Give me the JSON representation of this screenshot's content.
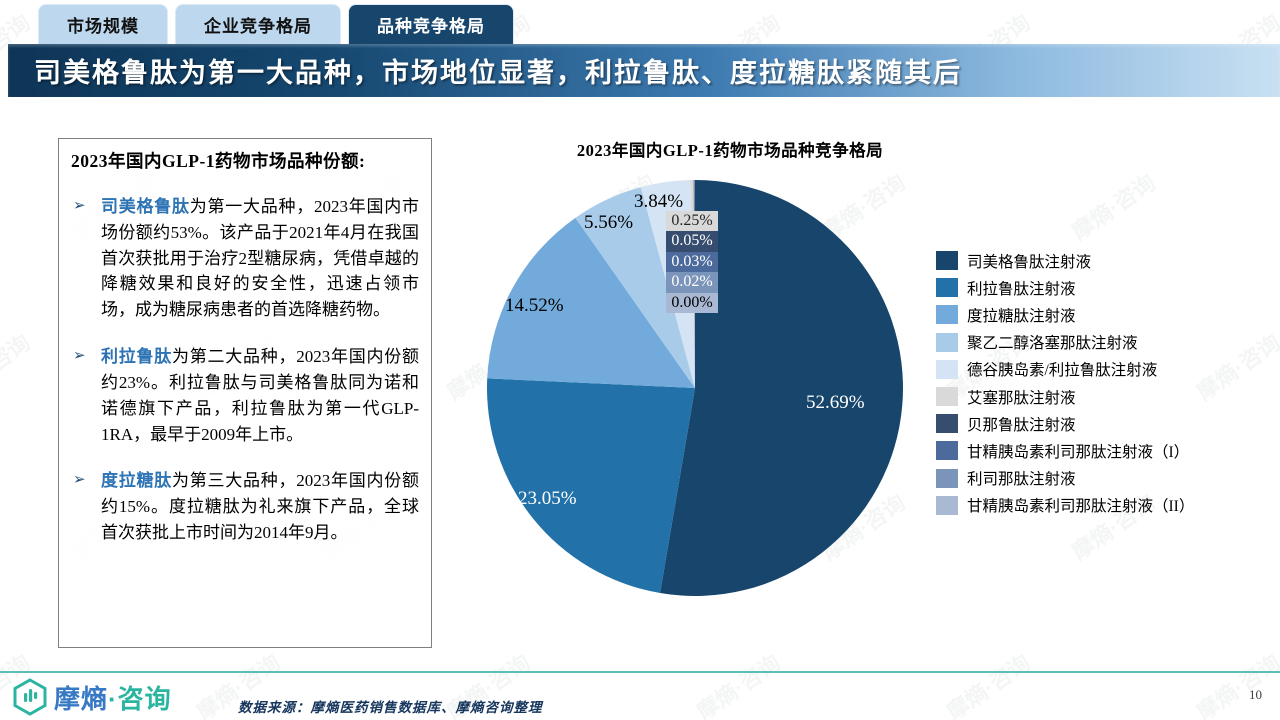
{
  "tabs": [
    {
      "label": "市场规模",
      "active": false
    },
    {
      "label": "企业竞争格局",
      "active": false
    },
    {
      "label": "品种竞争格局",
      "active": true
    }
  ],
  "header": {
    "title": "司美格鲁肽为第一大品种，市场地位显著，利拉鲁肽、度拉糖肽紧随其后"
  },
  "textbox": {
    "heading": "2023年国内GLP-1药物市场品种份额:",
    "bullets": [
      {
        "marker": "➢",
        "keyword": "司美格鲁肽",
        "text": "为第一大品种，2023年国内市场份额约53%。该产品于2021年4月在我国首次获批用于治疗2型糖尿病，凭借卓越的降糖效果和良好的安全性，迅速占领市场，成为糖尿病患者的首选降糖药物。"
      },
      {
        "marker": "➢",
        "keyword": "利拉鲁肽",
        "text": "为第二大品种，2023年国内份额约23%。利拉鲁肽与司美格鲁肽同为诺和诺德旗下产品，利拉鲁肽为第一代GLP-1RA，最早于2009年上市。"
      },
      {
        "marker": "➢",
        "keyword": "度拉糖肽",
        "text": "为第三大品种，2023年国内份额约15%。度拉糖肽为礼来旗下产品，全球首次获批上市时间为2014年9月。"
      }
    ]
  },
  "chart_data": {
    "type": "pie",
    "title": "2023年国内GLP-1药物市场品种竞争格局",
    "start_angle_deg": 0,
    "direction": "clockwise",
    "legend_position": "right",
    "slices": [
      {
        "label": "司美格鲁肽注射液",
        "value": 52.69,
        "label_text": "52.69%",
        "color": "#17456B",
        "label_color": "#FFFFFF",
        "boxed": false
      },
      {
        "label": "利拉鲁肽注射液",
        "value": 23.05,
        "label_text": "23.05%",
        "color": "#2272A9",
        "label_color": "#FFFFFF",
        "boxed": false
      },
      {
        "label": "度拉糖肽注射液",
        "value": 14.52,
        "label_text": "14.52%",
        "color": "#72AADB",
        "label_color": "#000000",
        "boxed": false
      },
      {
        "label": "聚乙二醇洛塞那肽注射液",
        "value": 5.56,
        "label_text": "5.56%",
        "color": "#A9CBEA",
        "label_color": "#000000",
        "boxed": false
      },
      {
        "label": "德谷胰岛素/利拉鲁肽注射液",
        "value": 3.84,
        "label_text": "3.84%",
        "color": "#D4E4F4",
        "label_color": "#000000",
        "boxed": false
      },
      {
        "label": "艾塞那肽注射液",
        "value": 0.25,
        "label_text": "0.25%",
        "color": "#D9D9D9",
        "label_color": "#262626",
        "boxed": true
      },
      {
        "label": "贝那鲁肽注射液",
        "value": 0.05,
        "label_text": "0.05%",
        "color": "#374D6F",
        "label_color": "#FFFFFF",
        "boxed": true
      },
      {
        "label": "甘精胰岛素利司那肽注射液（I）",
        "value": 0.03,
        "label_text": "0.03%",
        "color": "#4C6A9C",
        "label_color": "#FFFFFF",
        "boxed": true
      },
      {
        "label": "利司那肽注射液",
        "value": 0.02,
        "label_text": "0.02%",
        "color": "#7B94BA",
        "label_color": "#FFFFFF",
        "boxed": true
      },
      {
        "label": "甘精胰岛素利司那肽注射液（II）",
        "value": 0.0,
        "label_text": "0.00%",
        "color": "#A9B8D3",
        "label_color": "#000000",
        "boxed": true
      }
    ]
  },
  "footer": {
    "logo_text_1": "摩熵",
    "logo_text_2": "·咨询",
    "source": "数据来源：摩熵医药销售数据库、摩熵咨询整理",
    "page_number": "10"
  },
  "watermark": "摩熵·咨询",
  "colors": {
    "tab_inactive_bg": "#BDD7EE",
    "tab_active_bg": "#17456B",
    "header_gradient_left": "#0E3557",
    "header_gradient_right": "#C9E0F2",
    "footer_line": "#5BBFB5",
    "logo_blue": "#3779C5",
    "logo_teal": "#2BB5A0",
    "bullet_keyword": "#2E74B5"
  }
}
